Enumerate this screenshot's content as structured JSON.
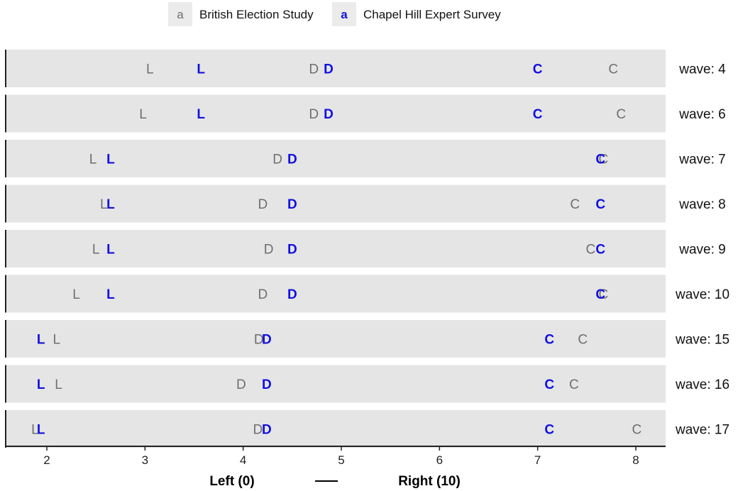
{
  "chart_data": {
    "type": "scatter",
    "legend": {
      "position": "top",
      "entries": [
        {
          "key": "a",
          "name": "British Election Study",
          "color": "#6f6f6f"
        },
        {
          "key": "a",
          "name": "Chapel Hill Expert Survey",
          "color": "#1010e0"
        }
      ]
    },
    "xlabel": {
      "left": "Left (0)",
      "dash": "—",
      "right": "Right (10)"
    },
    "xlim": [
      1.6,
      8.3
    ],
    "xticks": [
      2,
      3,
      4,
      5,
      6,
      7,
      8
    ],
    "tick_labels": [
      "2",
      "3",
      "4",
      "5",
      "6",
      "7",
      "8"
    ],
    "grid": false,
    "panels": [
      {
        "label": "wave: 4",
        "bes": {
          "L": 3.05,
          "D": 4.72,
          "C": 7.77
        },
        "ches": {
          "L": 3.57,
          "D": 4.87,
          "C": 7.0
        }
      },
      {
        "label": "wave: 6",
        "bes": {
          "L": 2.98,
          "D": 4.72,
          "C": 7.85
        },
        "ches": {
          "L": 3.57,
          "D": 4.87,
          "C": 7.0
        }
      },
      {
        "label": "wave: 7",
        "bes": {
          "L": 2.47,
          "D": 4.35,
          "C": 7.67
        },
        "ches": {
          "L": 2.65,
          "D": 4.5,
          "C": 7.64
        }
      },
      {
        "label": "wave: 8",
        "bes": {
          "L": 2.58,
          "D": 4.2,
          "C": 7.38
        },
        "ches": {
          "L": 2.65,
          "D": 4.5,
          "C": 7.64
        }
      },
      {
        "label": "wave: 9",
        "bes": {
          "L": 2.5,
          "D": 4.26,
          "C": 7.54
        },
        "ches": {
          "L": 2.65,
          "D": 4.5,
          "C": 7.64
        }
      },
      {
        "label": "wave: 10",
        "bes": {
          "L": 2.3,
          "D": 4.2,
          "C": 7.67
        },
        "ches": {
          "L": 2.65,
          "D": 4.5,
          "C": 7.64
        }
      },
      {
        "label": "wave: 15",
        "bes": {
          "L": 2.1,
          "D": 4.16,
          "C": 7.46
        },
        "ches": {
          "L": 1.94,
          "D": 4.24,
          "C": 7.12
        }
      },
      {
        "label": "wave: 16",
        "bes": {
          "L": 2.12,
          "D": 3.98,
          "C": 7.37
        },
        "ches": {
          "L": 1.94,
          "D": 4.24,
          "C": 7.12
        }
      },
      {
        "label": "wave: 17",
        "bes": {
          "L": 1.88,
          "D": 4.15,
          "C": 8.01
        },
        "ches": {
          "L": 1.94,
          "D": 4.24,
          "C": 7.12
        }
      }
    ]
  }
}
